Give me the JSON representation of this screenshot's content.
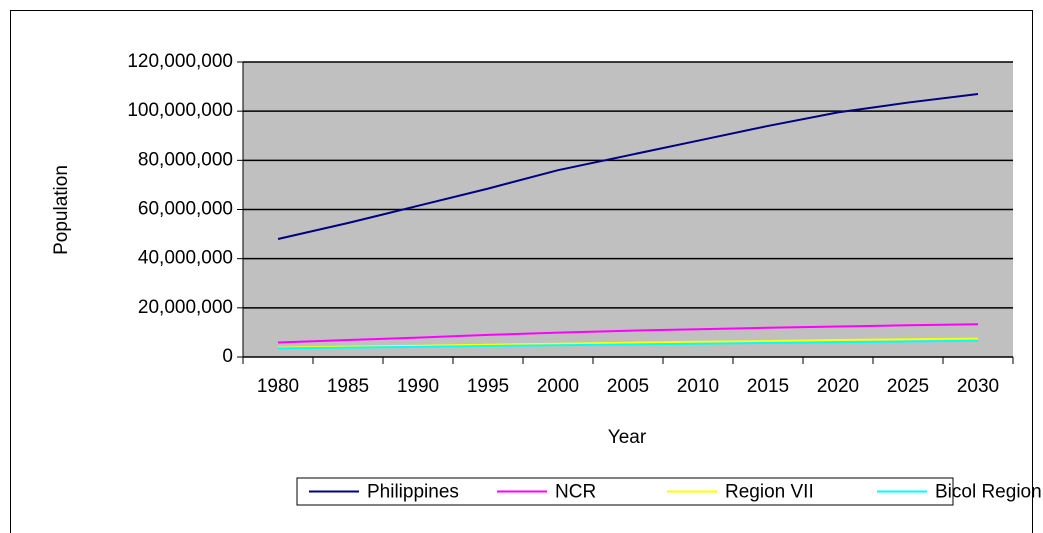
{
  "chart_data": {
    "type": "line",
    "x_label": "Year",
    "y_label": "Population",
    "categories": [
      "1980",
      "1985",
      "1990",
      "1995",
      "2000",
      "2005",
      "2010",
      "2015",
      "2020",
      "2025",
      "2030"
    ],
    "series": [
      {
        "name": "Philippines",
        "color": "#000080",
        "values": [
          48000000,
          54500000,
          61500000,
          68500000,
          76000000,
          82000000,
          88000000,
          94000000,
          99500000,
          103500000,
          107000000
        ]
      },
      {
        "name": "NCR",
        "color": "#ff00ff",
        "values": [
          5900000,
          6900000,
          7900000,
          9000000,
          9900000,
          10700000,
          11300000,
          11900000,
          12400000,
          12900000,
          13300000
        ]
      },
      {
        "name": "Region VII",
        "color": "#ffff00",
        "values": [
          3800000,
          4200000,
          4600000,
          5000000,
          5400000,
          5800000,
          6200000,
          6500000,
          6900000,
          7200000,
          7500000
        ]
      },
      {
        "name": "Bicol Region",
        "color": "#00ffff",
        "values": [
          3500000,
          3800000,
          4100000,
          4500000,
          4800000,
          5100000,
          5400000,
          5700000,
          6000000,
          6300000,
          6600000
        ]
      }
    ],
    "ylim": [
      0,
      120000000
    ],
    "yticks": [
      0,
      {
        "value": 20000000,
        "label": "20,000,000"
      },
      {
        "value": 40000000,
        "label": "40,000,000"
      },
      {
        "value": 60000000,
        "label": "60,000,000"
      },
      {
        "value": 80000000,
        "label": "80,000,000"
      },
      {
        "value": 100000000,
        "label": "100,000,000"
      },
      {
        "value": 120000000,
        "label": "120,000,000"
      }
    ],
    "grid": true,
    "legend": "bottom",
    "plot_background": "#c0c0c0"
  }
}
